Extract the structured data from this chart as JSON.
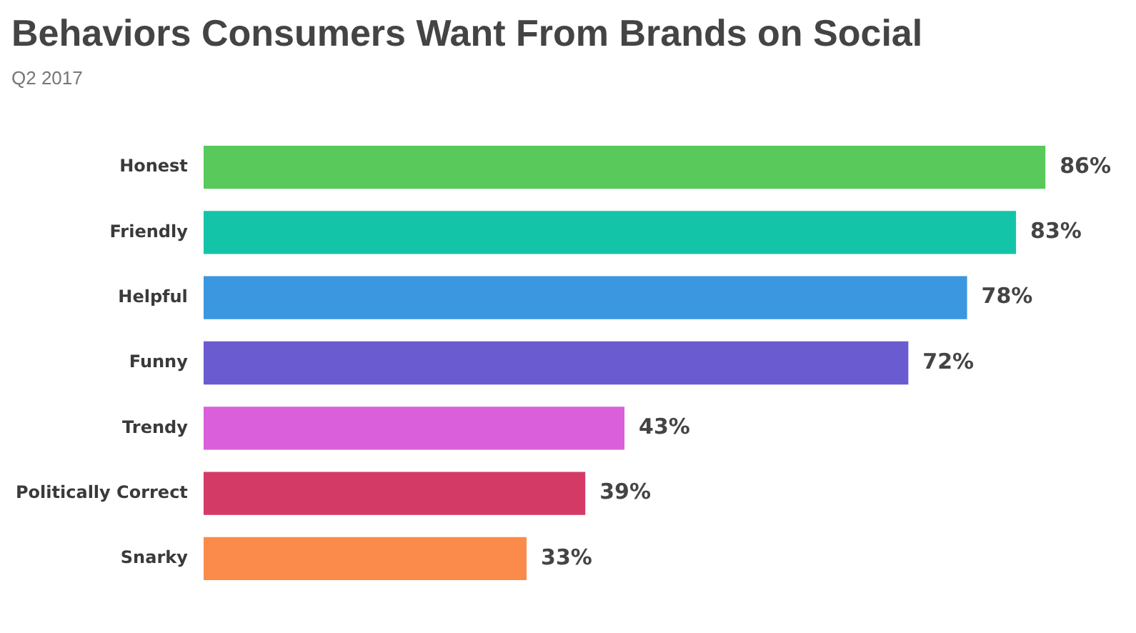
{
  "chart_data": {
    "type": "bar",
    "orientation": "horizontal",
    "title": "Behaviors Consumers Want From Brands on Social",
    "subtitle": "Q2 2017",
    "categories": [
      "Honest",
      "Friendly",
      "Helpful",
      "Funny",
      "Trendy",
      "Politically Correct",
      "Snarky"
    ],
    "values": [
      86,
      83,
      78,
      72,
      43,
      39,
      33
    ],
    "value_labels": [
      "86%",
      "83%",
      "78%",
      "72%",
      "43%",
      "39%",
      "33%"
    ],
    "colors": [
      "#58c95a",
      "#14c4a9",
      "#3b97e0",
      "#6a5bd0",
      "#da5fda",
      "#d33b66",
      "#fb8b4a"
    ],
    "legend": false
  }
}
